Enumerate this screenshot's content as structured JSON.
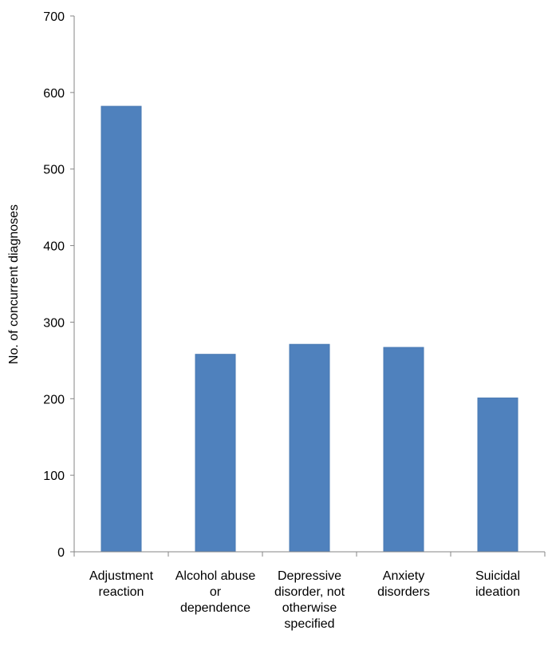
{
  "chart_data": {
    "type": "bar",
    "title": "",
    "xlabel": "",
    "ylabel": "No. of concurrent diagnoses",
    "ylim": [
      0,
      700
    ],
    "yticks": [
      0,
      100,
      200,
      300,
      400,
      500,
      600,
      700
    ],
    "grid": false,
    "categories": [
      [
        "Adjustment",
        "reaction"
      ],
      [
        "Alcohol abuse",
        "or",
        "dependence"
      ],
      [
        "Depressive",
        "disorder, not",
        "otherwise",
        "specified"
      ],
      [
        "Anxiety",
        "disorders"
      ],
      [
        "Suicidal",
        "ideation"
      ]
    ],
    "values": [
      582,
      258,
      271,
      267,
      201
    ],
    "colors": {
      "bar": "#4f81bd",
      "bar_edge": "#4a7ab3",
      "axis": "#868686"
    }
  }
}
